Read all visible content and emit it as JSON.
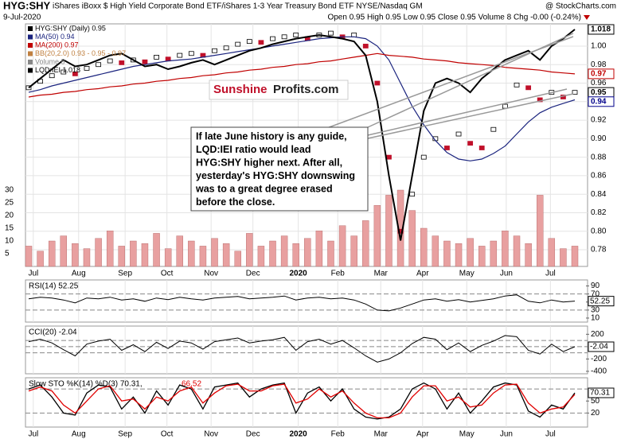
{
  "chart_data": {
    "type": "stock",
    "title": "HYG:SHY",
    "subtitle": "iShares iBoxx $ High Yield Corporate Bond ETF/iShares 1-3 Year Treasury Bond ETF NYSE/Nasdaq GM",
    "credit": "@ StockCharts.com",
    "date": "9-Jul-2020",
    "quote": "Open 0.95 High 0.95 Low 0.95 Close 0.95 Volume 8 Chg -0.00 (-0.24%)",
    "legend": [
      "HYG:SHY (Daily) 0.95",
      "MA(50) 0.94",
      "MA(200) 0.97",
      "BB(20,2.0) 0.93 - 0.95 - 0.97",
      "Volume 8",
      "LQD:IEI 1.018"
    ],
    "logo": [
      "Sunshine",
      "Profits.com"
    ],
    "annotation": [
      "If late June history is any guide,",
      "LQD:IEI ratio would lead",
      "HYG:SHY higher next. After all,",
      "yesterday's HYG:SHY downswing",
      "was to a great degree erased",
      "before the close."
    ],
    "xlim": [
      0,
      47
    ],
    "xticks": [
      {
        "value": 0.4,
        "label": "Jul"
      },
      {
        "value": 4.3,
        "label": "Aug"
      },
      {
        "value": 8.3,
        "label": "Sep"
      },
      {
        "value": 11.9,
        "label": "Oct"
      },
      {
        "value": 15.7,
        "label": "Nov"
      },
      {
        "value": 19.3,
        "label": "Dec"
      },
      {
        "value": 23.2,
        "label": "2020"
      },
      {
        "value": 26.6,
        "label": "Feb"
      },
      {
        "value": 30.3,
        "label": "Mar"
      },
      {
        "value": 33.9,
        "label": "Apr"
      },
      {
        "value": 37.7,
        "label": "May"
      },
      {
        "value": 41.1,
        "label": "Jun"
      },
      {
        "value": 44.9,
        "label": "Jul"
      }
    ],
    "ylim": [
      0.762,
      1.024
    ],
    "yticks": [
      0.78,
      {
        "value": 0.8,
        "label": "0.80"
      },
      0.82,
      0.84,
      0.86,
      0.88,
      {
        "value": 0.9,
        "label": "0.90"
      },
      0.92,
      0.94,
      0.96,
      0.98,
      {
        "value": 1,
        "label": "1.00"
      }
    ],
    "price_tags": [
      {
        "value": 1.018,
        "color": "#000"
      },
      {
        "value": 0.97,
        "color": "#c00000"
      },
      {
        "value": 0.95,
        "color": "#000"
      },
      {
        "value": 0.94,
        "color": "#00008b"
      }
    ],
    "series": [
      {
        "name": "HYG:SHY",
        "color": "#c0102a",
        "values": [
          0.955,
          0.962,
          0.968,
          0.972,
          0.97,
          0.976,
          0.98,
          0.984,
          0.982,
          0.985,
          0.983,
          0.988,
          0.986,
          0.99,
          0.992,
          0.99,
          0.995,
          0.998,
          1.002,
          1.005,
          1.004,
          1.008,
          1.01,
          1.012,
          1.008,
          1.012,
          1.014,
          1.01,
          1.012,
          1.0,
          0.96,
          0.88,
          0.8,
          0.84,
          0.88,
          0.9,
          0.89,
          0.905,
          0.895,
          0.89,
          0.91,
          0.935,
          0.958,
          0.955,
          0.942,
          0.95,
          0.945,
          0.95
        ]
      },
      {
        "name": "MA(50)",
        "color": "#1a237e",
        "values": [
          0.95,
          0.953,
          0.957,
          0.96,
          0.963,
          0.966,
          0.969,
          0.972,
          0.975,
          0.978,
          0.98,
          0.982,
          0.984,
          0.985,
          0.986,
          0.988,
          0.99,
          0.992,
          0.994,
          0.996,
          0.998,
          1.0,
          1.002,
          1.004,
          1.006,
          1.008,
          1.009,
          1.01,
          1.01,
          1.008,
          1.0,
          0.985,
          0.96,
          0.935,
          0.915,
          0.898,
          0.885,
          0.878,
          0.876,
          0.878,
          0.884,
          0.892,
          0.905,
          0.918,
          0.928,
          0.934,
          0.938,
          0.942
        ]
      },
      {
        "name": "MA(200)",
        "color": "#c00000",
        "values": [
          0.945,
          0.947,
          0.948,
          0.95,
          0.951,
          0.953,
          0.954,
          0.956,
          0.957,
          0.959,
          0.96,
          0.962,
          0.963,
          0.965,
          0.966,
          0.968,
          0.969,
          0.971,
          0.972,
          0.974,
          0.975,
          0.977,
          0.978,
          0.98,
          0.981,
          0.983,
          0.984,
          0.986,
          0.988,
          0.99,
          0.992,
          0.99,
          0.989,
          0.988,
          0.986,
          0.985,
          0.984,
          0.982,
          0.981,
          0.98,
          0.979,
          0.977,
          0.976,
          0.975,
          0.974,
          0.972,
          0.971,
          0.97
        ]
      },
      {
        "name": "LQD:IEI",
        "color": "#000000",
        "values": [
          0.955,
          0.965,
          0.975,
          0.985,
          0.978,
          0.98,
          0.985,
          0.99,
          0.992,
          0.985,
          0.978,
          0.98,
          0.975,
          0.978,
          0.982,
          0.985,
          0.98,
          0.985,
          0.99,
          0.995,
          0.998,
          1.002,
          1.005,
          1.008,
          1.01,
          1.012,
          1.01,
          1.008,
          1.005,
          0.99,
          0.94,
          0.86,
          0.79,
          0.86,
          0.93,
          0.96,
          0.965,
          0.96,
          0.95,
          0.965,
          0.975,
          0.985,
          0.99,
          0.995,
          0.985,
          1.0,
          1.008,
          1.018
        ]
      }
    ],
    "volume": {
      "color": "#e8a0a0",
      "vlim": [
        0,
        30
      ],
      "vticks": [
        5,
        10,
        15,
        20,
        25,
        30
      ],
      "values": [
        8,
        6,
        10,
        12,
        9,
        7,
        11,
        14,
        8,
        10,
        9,
        13,
        7,
        12,
        10,
        8,
        11,
        9,
        6,
        13,
        8,
        10,
        12,
        9,
        11,
        14,
        10,
        16,
        12,
        18,
        24,
        28,
        30,
        22,
        15,
        12,
        10,
        9,
        11,
        8,
        10,
        14,
        12,
        9,
        28,
        11,
        7,
        8
      ]
    },
    "rsi": {
      "title": "RSI(14) 52.25",
      "ylim": [
        0,
        105
      ],
      "yticks": [
        10,
        30,
        50,
        70,
        90
      ],
      "levels": [
        70,
        30
      ],
      "color": "#000",
      "values": [
        58,
        62,
        60,
        55,
        48,
        60,
        58,
        62,
        55,
        58,
        52,
        60,
        56,
        62,
        58,
        55,
        60,
        62,
        64,
        58,
        60,
        62,
        65,
        55,
        60,
        62,
        58,
        60,
        55,
        45,
        30,
        28,
        35,
        45,
        55,
        58,
        52,
        56,
        50,
        54,
        58,
        65,
        68,
        52,
        48,
        55,
        50,
        52.25
      ]
    },
    "cci": {
      "title": "CCI(20) -2.04",
      "ylim": [
        -440,
        333
      ],
      "yticks": [
        200,
        -200,
        -400
      ],
      "levels": [
        100,
        0,
        -100
      ],
      "color": "#000",
      "values": [
        80,
        120,
        60,
        -50,
        -150,
        40,
        90,
        120,
        -60,
        30,
        -80,
        70,
        -30,
        90,
        60,
        -40,
        80,
        110,
        140,
        60,
        90,
        110,
        150,
        -60,
        80,
        120,
        40,
        100,
        -20,
        -150,
        -250,
        -200,
        -100,
        50,
        150,
        120,
        -50,
        60,
        -80,
        20,
        90,
        180,
        160,
        -60,
        -120,
        40,
        -80,
        -2.04
      ]
    },
    "sto": {
      "title": "Slow STO %K(14) %D(3) 70.31,",
      "title2": "66.52",
      "ylim": [
        -15,
        108
      ],
      "yticks": [
        50,
        20
      ],
      "levels": [
        80,
        20
      ],
      "series": [
        {
          "name": "%K",
          "color": "#000",
          "values": [
            80,
            90,
            60,
            20,
            15,
            70,
            90,
            85,
            30,
            60,
            20,
            75,
            40,
            90,
            80,
            30,
            85,
            90,
            95,
            60,
            80,
            90,
            95,
            20,
            70,
            85,
            50,
            80,
            30,
            10,
            5,
            10,
            30,
            80,
            95,
            80,
            30,
            70,
            20,
            50,
            85,
            95,
            90,
            25,
            10,
            40,
            30,
            70.31
          ]
        },
        {
          "name": "%D",
          "color": "#e00000",
          "values": [
            75,
            85,
            75,
            40,
            20,
            50,
            80,
            88,
            50,
            55,
            30,
            60,
            50,
            75,
            85,
            45,
            70,
            88,
            92,
            75,
            75,
            88,
            92,
            45,
            55,
            80,
            60,
            75,
            45,
            20,
            8,
            8,
            20,
            60,
            88,
            88,
            50,
            60,
            35,
            40,
            70,
            90,
            92,
            45,
            20,
            30,
            35,
            66.52
          ]
        }
      ]
    }
  }
}
